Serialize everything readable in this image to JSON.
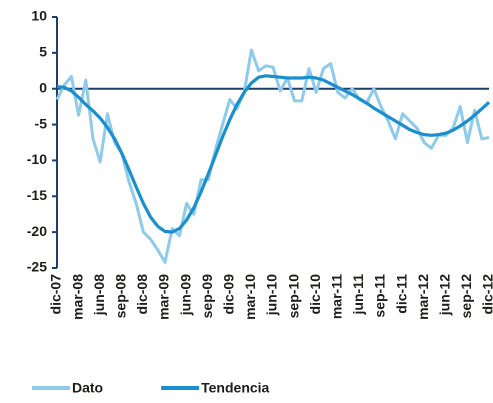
{
  "chart_data": {
    "type": "line",
    "categories": [
      "dic-07",
      null,
      null,
      "mar-08",
      null,
      null,
      "jun-08",
      null,
      null,
      "sep-08",
      null,
      null,
      "dic-08",
      null,
      null,
      "mar-09",
      null,
      null,
      "jun-09",
      null,
      null,
      "sep-09",
      null,
      null,
      "dic-09",
      null,
      null,
      "mar-10",
      null,
      null,
      "jun-10",
      null,
      null,
      "sep-10",
      null,
      null,
      "dic-10",
      null,
      null,
      "mar-11",
      null,
      null,
      "jun-11",
      null,
      null,
      "sep-11",
      null,
      null,
      "dic-11",
      null,
      null,
      "mar-12",
      null,
      null,
      "jun-12",
      null,
      null,
      "sep-12",
      null,
      null,
      "dic-12"
    ],
    "series": [
      {
        "name": "Dato",
        "color": "#8ecbeb",
        "values": [
          -1.5,
          0.5,
          1.7,
          -3.7,
          1.2,
          -7,
          -10.2,
          -3.5,
          -7.5,
          -9,
          -13,
          -16,
          -20,
          -21,
          -22.5,
          -24.2,
          -19.5,
          -20.5,
          -16,
          -17.5,
          -12.7,
          -12.7,
          -8.5,
          -5,
          -1.5,
          -2.8,
          -0.5,
          5.4,
          2.5,
          3.2,
          3,
          -0.3,
          1.5,
          -1.7,
          -1.7,
          2.8,
          -0.5,
          2.8,
          3.5,
          -0.5,
          -1.3,
          0,
          -1.5,
          -2,
          0,
          -2.5,
          -4.5,
          -7,
          -3.5,
          -4.5,
          -5.5,
          -7.5,
          -8.3,
          -6.5,
          -6.5,
          -5.5,
          -2.5,
          -7.5,
          -3,
          -7,
          -6.8
        ]
      },
      {
        "name": "Tendencia",
        "color": "#1a8fcf",
        "values": [
          0.3,
          0.2,
          -0.3,
          -1.2,
          -2.2,
          -3.1,
          -4.1,
          -5.4,
          -7,
          -9,
          -11.3,
          -13.7,
          -16,
          -17.9,
          -19.2,
          -19.9,
          -20,
          -19.5,
          -18.3,
          -16.6,
          -14.4,
          -11.9,
          -9.3,
          -6.7,
          -4.3,
          -2.2,
          -0.5,
          0.8,
          1.6,
          1.8,
          1.7,
          1.6,
          1.5,
          1.5,
          1.5,
          1.6,
          1.5,
          1.2,
          0.7,
          0.2,
          -0.3,
          -0.8,
          -1.4,
          -2,
          -2.7,
          -3.3,
          -3.9,
          -4.5,
          -5.1,
          -5.7,
          -6.1,
          -6.4,
          -6.5,
          -6.4,
          -6.2,
          -5.8,
          -5.2,
          -4.5,
          -3.7,
          -2.8,
          -1.9
        ]
      }
    ],
    "ylim": [
      -25,
      10
    ],
    "yticks": [
      10,
      5,
      0,
      -5,
      -10,
      -15,
      -20,
      -25
    ],
    "axis_color": "#1c3f6e",
    "legend": "bottom"
  }
}
